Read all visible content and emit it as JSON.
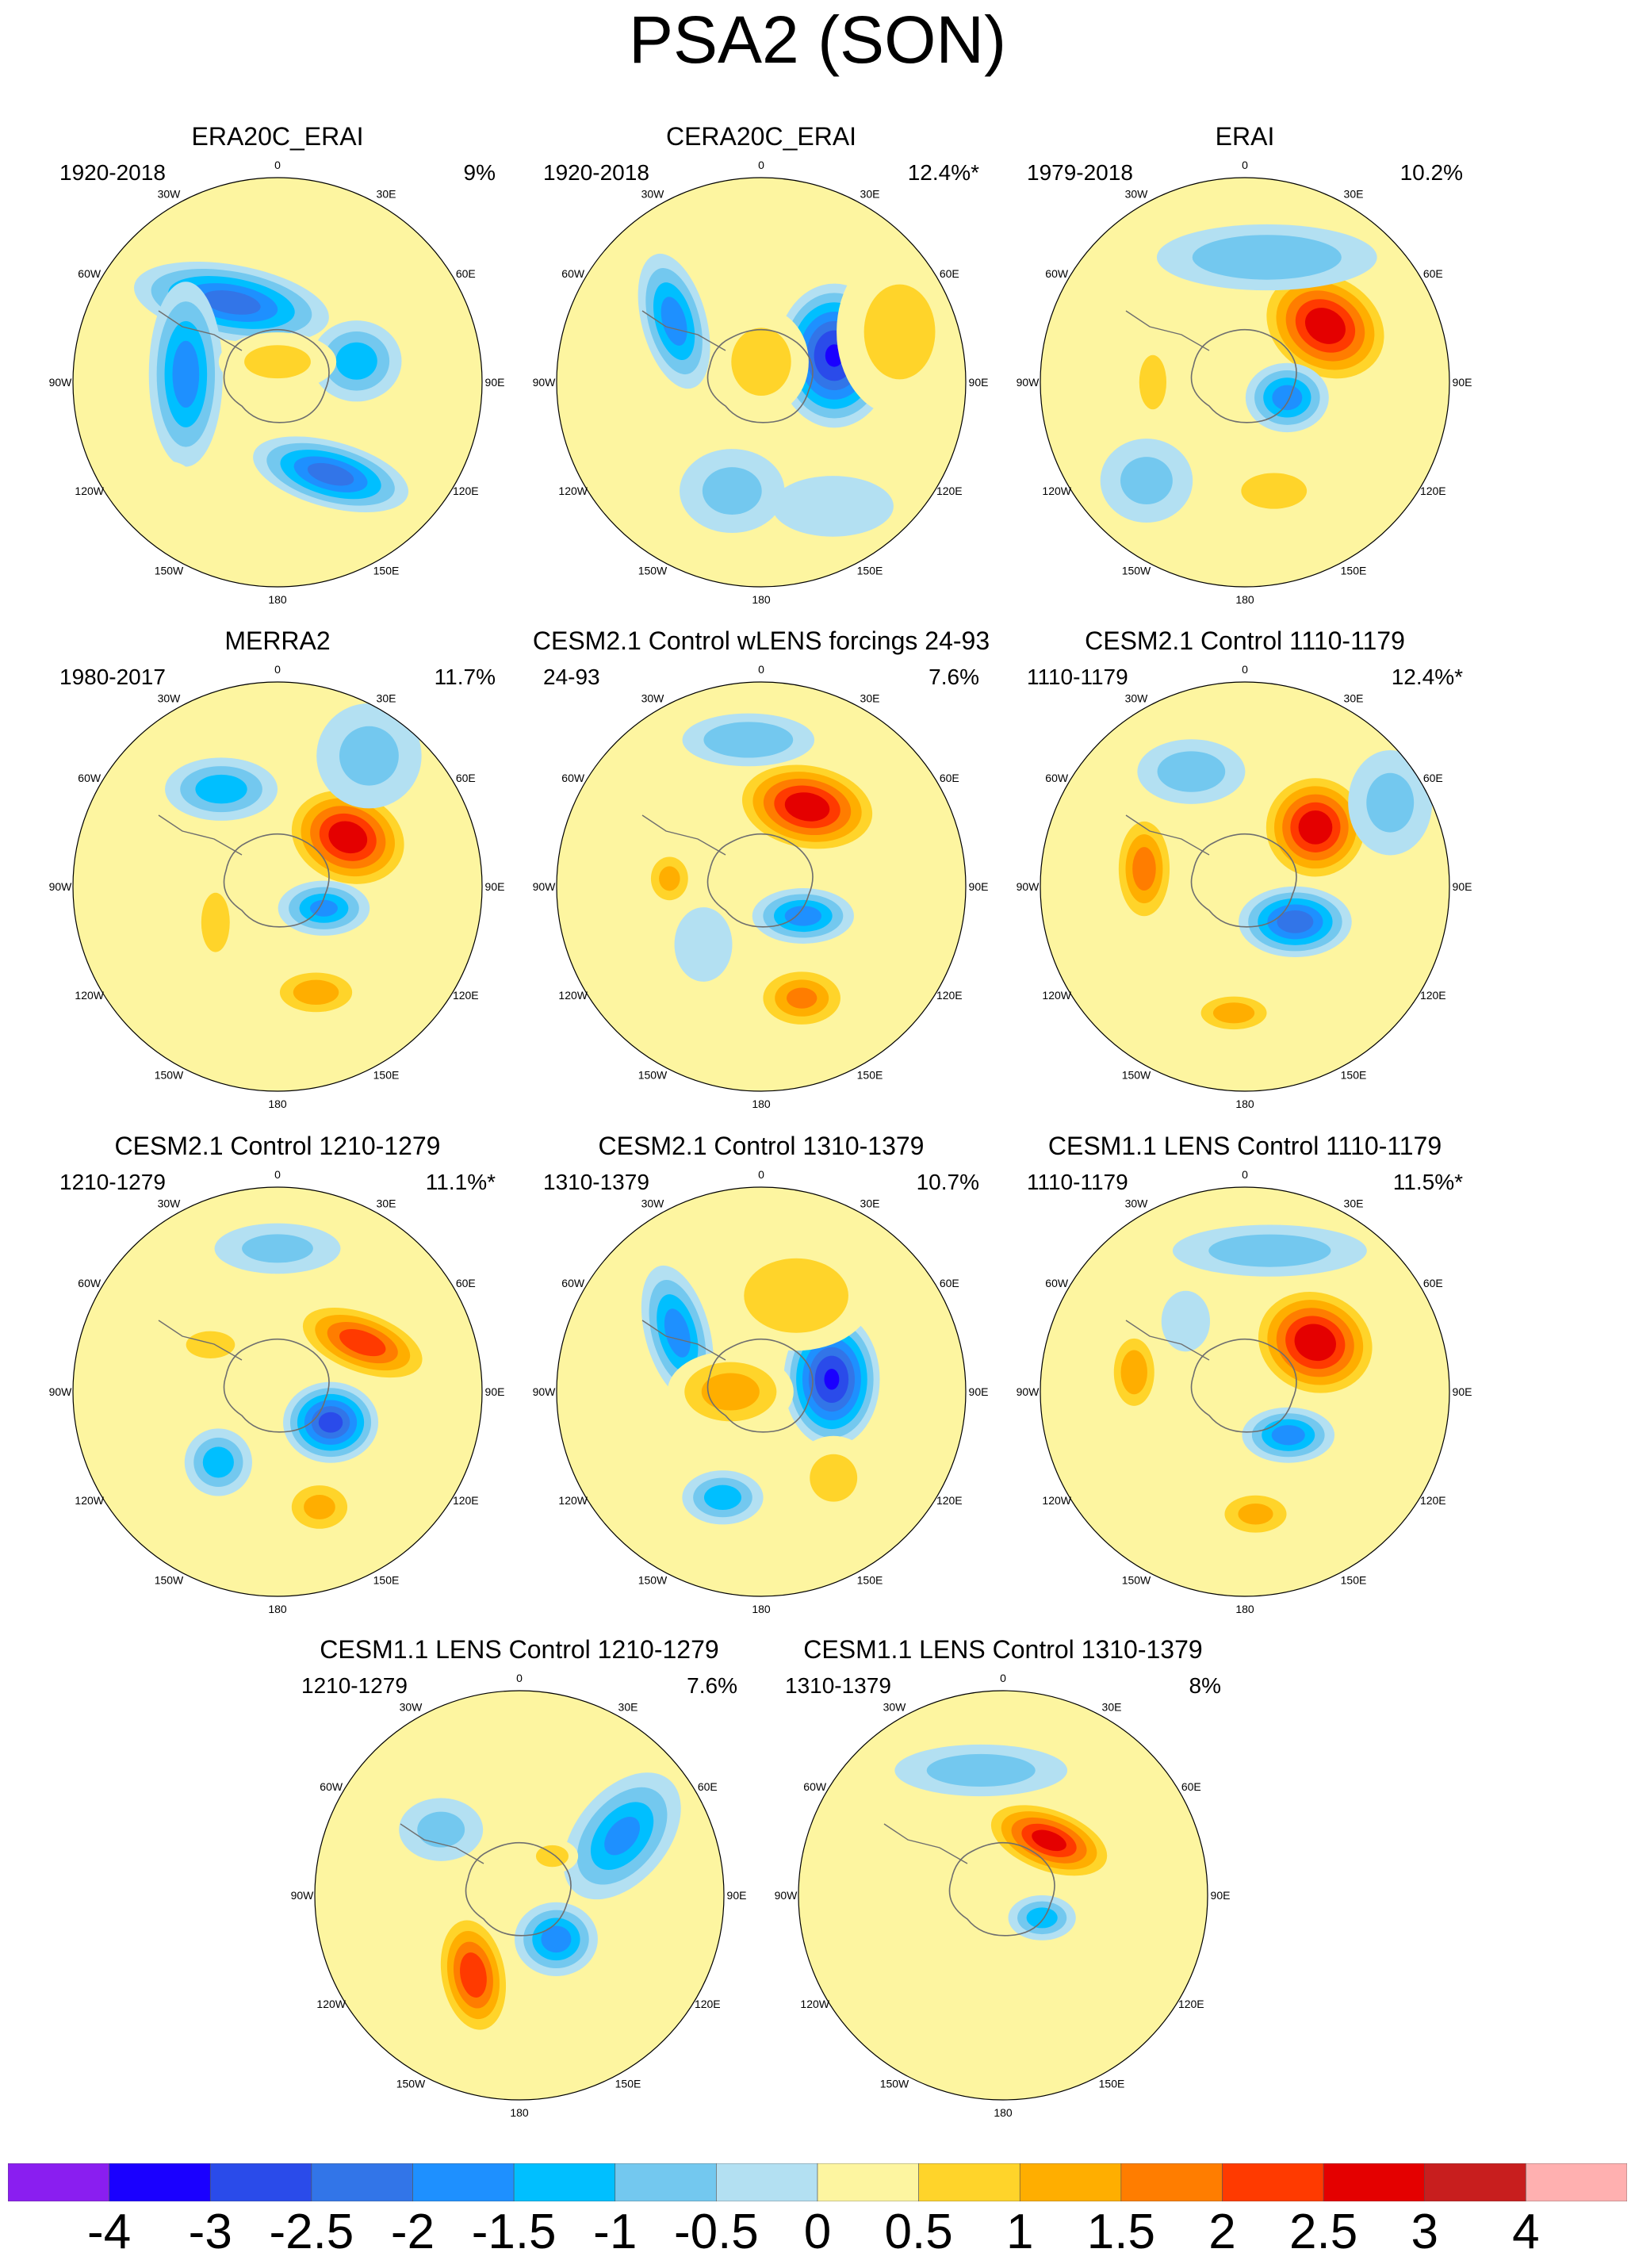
{
  "title": "PSA2 (SON)",
  "chart_data": {
    "type": "heatmap",
    "projection": "south polar stereographic",
    "longitude_labels": [
      "0",
      "30E",
      "60E",
      "90E",
      "120E",
      "150E",
      "180",
      "150W",
      "120W",
      "90W",
      "60W",
      "30W"
    ],
    "colorbar": {
      "ticks": [
        "-4",
        "-3",
        "-2.5",
        "-2",
        "-1.5",
        "-1",
        "-0.5",
        "0",
        "0.5",
        "1",
        "1.5",
        "2",
        "2.5",
        "3",
        "4"
      ],
      "colors": [
        "#8a1ef0",
        "#1a00ff",
        "#2a4bea",
        "#3275e8",
        "#1e90ff",
        "#00bfff",
        "#73c8ef",
        "#b3e0f2",
        "#fdf5a0",
        "#ffd42a",
        "#ffae00",
        "#ff7d00",
        "#ff3a00",
        "#e40000",
        "#c81e1e",
        "#ffb0b0"
      ]
    },
    "panels": [
      {
        "title": "ERA20C_ERAI",
        "period": "1920-2018",
        "percent": "9%",
        "blobs": [
          {
            "lon": 330,
            "r": 0.52,
            "v": -2.5,
            "rx": 0.34,
            "ry": 0.14,
            "rot": 15
          },
          {
            "lon": 150,
            "r": 0.45,
            "v": -2.5,
            "rx": 0.42,
            "ry": 0.16,
            "rot": 10
          },
          {
            "lon": 95,
            "r": 0.45,
            "v": -2.0,
            "rx": 0.16,
            "ry": 0.4,
            "rot": 0
          },
          {
            "lon": 255,
            "r": 0.4,
            "v": -1.5,
            "rx": 0.2,
            "ry": 0.18,
            "rot": 0
          },
          {
            "lon": 180,
            "r": 0.1,
            "v": 0.8,
            "rx": 0.28,
            "ry": 0.14,
            "rot": 0
          },
          {
            "lon": 40,
            "r": 0.82,
            "v": 0.5,
            "rx": 0.18,
            "ry": 0.25,
            "rot": 0
          }
        ]
      },
      {
        "title": "CERA20C_ERAI",
        "period": "1920-2018",
        "percent": "12.4%*",
        "blobs": [
          {
            "lon": 250,
            "r": 0.38,
            "v": -3.5,
            "rx": 0.24,
            "ry": 0.3,
            "rot": 0
          },
          {
            "lon": 125,
            "r": 0.52,
            "v": -2.0,
            "rx": 0.14,
            "ry": 0.3,
            "rot": -15
          },
          {
            "lon": 180,
            "r": 0.1,
            "v": 1.0,
            "rx": 0.22,
            "ry": 0.25,
            "rot": 0
          },
          {
            "lon": 250,
            "r": 0.72,
            "v": 0.8,
            "rx": 0.3,
            "ry": 0.4,
            "rot": 0
          },
          {
            "lon": 15,
            "r": 0.55,
            "v": -0.8,
            "rx": 0.25,
            "ry": 0.2,
            "rot": 0
          },
          {
            "lon": 330,
            "r": 0.7,
            "v": -0.6,
            "rx": 0.3,
            "ry": 0.15,
            "rot": 0
          }
        ]
      },
      {
        "title": "ERAI",
        "period": "1979-2018",
        "percent": "10.2%",
        "blobs": [
          {
            "lon": 235,
            "r": 0.48,
            "v": 3.2,
            "rx": 0.3,
            "ry": 0.24,
            "rot": 30
          },
          {
            "lon": 290,
            "r": 0.22,
            "v": -2.0,
            "rx": 0.18,
            "ry": 0.15,
            "rot": 0
          },
          {
            "lon": 345,
            "r": 0.55,
            "v": 1.2,
            "rx": 0.22,
            "ry": 0.12,
            "rot": 0
          },
          {
            "lon": 90,
            "r": 0.45,
            "v": 1.0,
            "rx": 0.1,
            "ry": 0.2,
            "rot": 0
          },
          {
            "lon": 190,
            "r": 0.62,
            "v": -1.2,
            "rx": 0.5,
            "ry": 0.15,
            "rot": 0
          },
          {
            "lon": 45,
            "r": 0.68,
            "v": -0.8,
            "rx": 0.22,
            "ry": 0.2,
            "rot": 0
          }
        ]
      },
      {
        "title": "MERRA2",
        "period": "1980-2017",
        "percent": "11.7%",
        "blobs": [
          {
            "lon": 235,
            "r": 0.42,
            "v": 3.2,
            "rx": 0.28,
            "ry": 0.22,
            "rot": 20
          },
          {
            "lon": 295,
            "r": 0.25,
            "v": -1.8,
            "rx": 0.2,
            "ry": 0.12,
            "rot": 0
          },
          {
            "lon": 340,
            "r": 0.55,
            "v": 1.5,
            "rx": 0.22,
            "ry": 0.12,
            "rot": 0
          },
          {
            "lon": 150,
            "r": 0.55,
            "v": -1.5,
            "rx": 0.25,
            "ry": 0.14,
            "rot": 0
          },
          {
            "lon": 60,
            "r": 0.35,
            "v": 0.8,
            "rx": 0.12,
            "ry": 0.25,
            "rot": 0
          },
          {
            "lon": 215,
            "r": 0.78,
            "v": -0.8,
            "rx": 0.25,
            "ry": 0.25,
            "rot": 0
          }
        ]
      },
      {
        "title": "CESM2.1 Control wLENS forcings 24-93",
        "period": "24-93",
        "percent": "7.6%",
        "blobs": [
          {
            "lon": 210,
            "r": 0.45,
            "v": 3.2,
            "rx": 0.32,
            "ry": 0.2,
            "rot": 10
          },
          {
            "lon": 305,
            "r": 0.25,
            "v": -2.0,
            "rx": 0.22,
            "ry": 0.12,
            "rot": 0
          },
          {
            "lon": 340,
            "r": 0.58,
            "v": 1.8,
            "rx": 0.22,
            "ry": 0.15,
            "rot": 0
          },
          {
            "lon": 95,
            "r": 0.45,
            "v": 1.3,
            "rx": 0.12,
            "ry": 0.14,
            "rot": 0
          },
          {
            "lon": 175,
            "r": 0.72,
            "v": -1.2,
            "rx": 0.3,
            "ry": 0.12,
            "rot": 0
          },
          {
            "lon": 45,
            "r": 0.4,
            "v": -0.7,
            "rx": 0.14,
            "ry": 0.18,
            "rot": 0
          }
        ]
      },
      {
        "title": "CESM2.1 Control 1110-1179",
        "period": "1110-1179",
        "percent": "12.4%*",
        "blobs": [
          {
            "lon": 230,
            "r": 0.45,
            "v": 3.2,
            "rx": 0.24,
            "ry": 0.24,
            "rot": 0
          },
          {
            "lon": 305,
            "r": 0.3,
            "v": -2.6,
            "rx": 0.24,
            "ry": 0.15,
            "rot": 0
          },
          {
            "lon": 5,
            "r": 0.62,
            "v": 1.5,
            "rx": 0.2,
            "ry": 0.1,
            "rot": 0
          },
          {
            "lon": 100,
            "r": 0.5,
            "v": 2.0,
            "rx": 0.14,
            "ry": 0.26,
            "rot": 0
          },
          {
            "lon": 155,
            "r": 0.62,
            "v": -1.0,
            "rx": 0.25,
            "ry": 0.15,
            "rot": 0
          },
          {
            "lon": 240,
            "r": 0.82,
            "v": -0.8,
            "rx": 0.2,
            "ry": 0.25,
            "rot": 0
          }
        ]
      },
      {
        "title": "CESM2.1 Control 1210-1279",
        "period": "1210-1279",
        "percent": "11.1%*",
        "blobs": [
          {
            "lon": 240,
            "r": 0.48,
            "v": 2.6,
            "rx": 0.32,
            "ry": 0.15,
            "rot": 20
          },
          {
            "lon": 300,
            "r": 0.3,
            "v": -3.0,
            "rx": 0.2,
            "ry": 0.17,
            "rot": 0
          },
          {
            "lon": 340,
            "r": 0.6,
            "v": 1.3,
            "rx": 0.18,
            "ry": 0.14,
            "rot": 0
          },
          {
            "lon": 40,
            "r": 0.45,
            "v": -1.5,
            "rx": 0.15,
            "ry": 0.15,
            "rot": 0
          },
          {
            "lon": 125,
            "r": 0.4,
            "v": 1.0,
            "rx": 0.18,
            "ry": 0.1,
            "rot": 0
          },
          {
            "lon": 180,
            "r": 0.7,
            "v": -0.8,
            "rx": 0.3,
            "ry": 0.12,
            "rot": 0
          }
        ]
      },
      {
        "title": "CESM2.1 Control 1310-1379",
        "period": "1310-1379",
        "percent": "10.7%",
        "blobs": [
          {
            "lon": 260,
            "r": 0.35,
            "v": -3.5,
            "rx": 0.2,
            "ry": 0.28,
            "rot": 0
          },
          {
            "lon": 125,
            "r": 0.5,
            "v": -2.0,
            "rx": 0.14,
            "ry": 0.3,
            "rot": -15
          },
          {
            "lon": 20,
            "r": 0.55,
            "v": -1.5,
            "rx": 0.18,
            "ry": 0.12,
            "rot": 0
          },
          {
            "lon": 90,
            "r": 0.15,
            "v": 1.5,
            "rx": 0.28,
            "ry": 0.18,
            "rot": 0
          },
          {
            "lon": 200,
            "r": 0.5,
            "v": 1.2,
            "rx": 0.35,
            "ry": 0.25,
            "rot": 0
          },
          {
            "lon": 320,
            "r": 0.55,
            "v": 0.8,
            "rx": 0.2,
            "ry": 0.2,
            "rot": 0
          }
        ]
      },
      {
        "title": "CESM1.1 LENS Control 1110-1179",
        "period": "1110-1179",
        "percent": "11.5%*",
        "blobs": [
          {
            "lon": 235,
            "r": 0.42,
            "v": 3.3,
            "rx": 0.28,
            "ry": 0.24,
            "rot": 20
          },
          {
            "lon": 315,
            "r": 0.3,
            "v": -2.0,
            "rx": 0.2,
            "ry": 0.12,
            "rot": 0
          },
          {
            "lon": 355,
            "r": 0.6,
            "v": 1.3,
            "rx": 0.2,
            "ry": 0.12,
            "rot": 0
          },
          {
            "lon": 100,
            "r": 0.55,
            "v": 1.6,
            "rx": 0.12,
            "ry": 0.2,
            "rot": 0
          },
          {
            "lon": 190,
            "r": 0.7,
            "v": -1.0,
            "rx": 0.45,
            "ry": 0.12,
            "rot": 0
          },
          {
            "lon": 140,
            "r": 0.45,
            "v": -0.6,
            "rx": 0.12,
            "ry": 0.15,
            "rot": 0
          }
        ]
      },
      {
        "title": "CESM1.1 LENS Control 1210-1279",
        "period": "1210-1279",
        "percent": "7.6%",
        "blobs": [
          {
            "lon": 30,
            "r": 0.45,
            "v": 2.7,
            "rx": 0.16,
            "ry": 0.28,
            "rot": -10
          },
          {
            "lon": 320,
            "r": 0.28,
            "v": -2.0,
            "rx": 0.18,
            "ry": 0.16,
            "rot": 0
          },
          {
            "lon": 240,
            "r": 0.58,
            "v": -1.8,
            "rx": 0.2,
            "ry": 0.32,
            "rot": 40
          },
          {
            "lon": 220,
            "r": 0.25,
            "v": 1.0,
            "rx": 0.12,
            "ry": 0.08,
            "rot": 0
          },
          {
            "lon": 130,
            "r": 0.5,
            "v": -0.8,
            "rx": 0.2,
            "ry": 0.15,
            "rot": 0
          }
        ]
      },
      {
        "title": "CESM1.1 LENS Control 1310-1379",
        "period": "1310-1379",
        "percent": "8%",
        "blobs": [
          {
            "lon": 220,
            "r": 0.35,
            "v": 3.0,
            "rx": 0.3,
            "ry": 0.15,
            "rot": 20
          },
          {
            "lon": 300,
            "r": 0.22,
            "v": -1.5,
            "rx": 0.15,
            "ry": 0.1,
            "rot": 0
          },
          {
            "lon": 170,
            "r": 0.62,
            "v": -1.0,
            "rx": 0.4,
            "ry": 0.12,
            "rot": 0
          },
          {
            "lon": 0,
            "r": 0.8,
            "v": 0.5,
            "rx": 0.25,
            "ry": 0.15,
            "rot": 0
          },
          {
            "lon": 100,
            "r": 0.7,
            "v": 0.5,
            "rx": 0.12,
            "ry": 0.3,
            "rot": 0
          }
        ]
      }
    ]
  }
}
